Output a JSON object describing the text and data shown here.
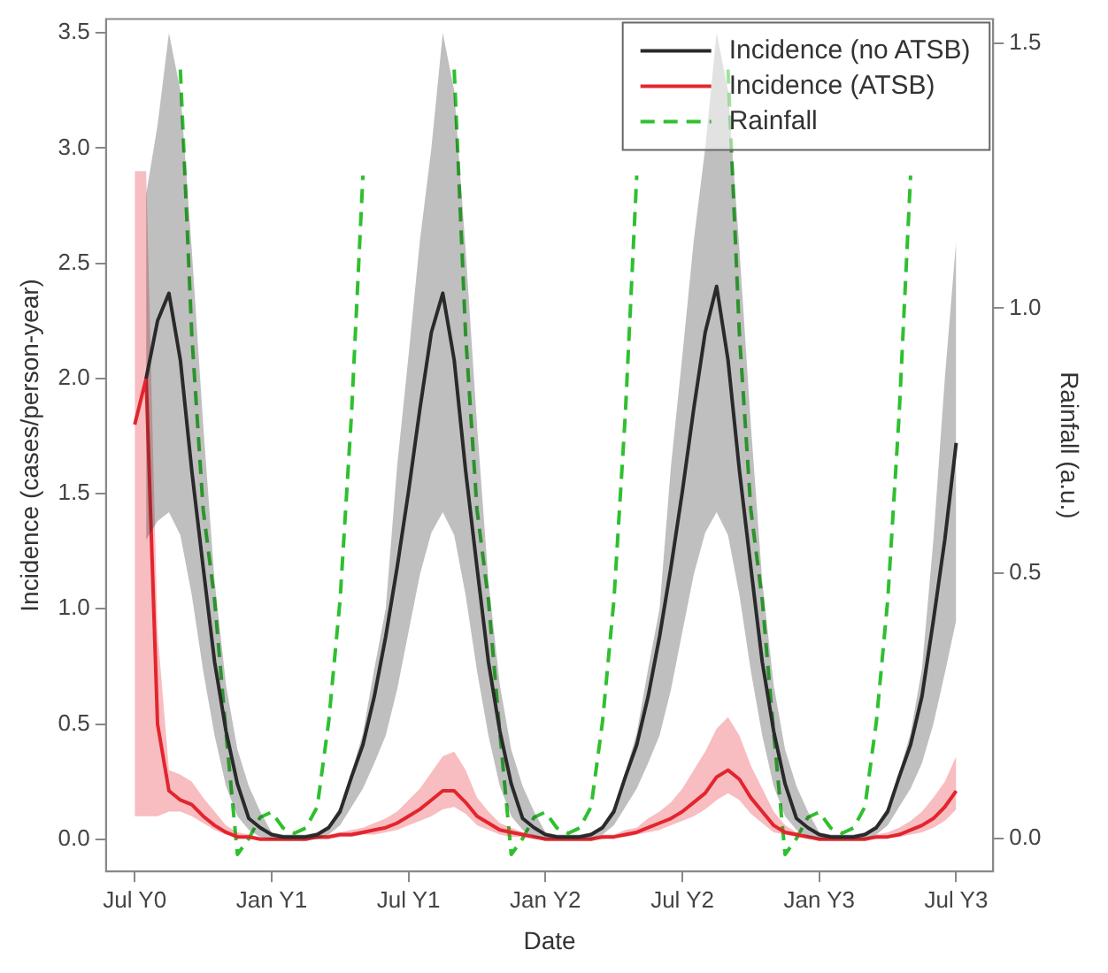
{
  "chart_data": {
    "type": "line",
    "xlabel": "Date",
    "ylabel": "Incidence (cases/person-year)",
    "y2label": "Rainfall (a.u.)",
    "categories": [
      "Jul Y0",
      null,
      null,
      null,
      null,
      null,
      null,
      null,
      null,
      null,
      null,
      null,
      "Jan Y1",
      null,
      null,
      null,
      null,
      null,
      null,
      null,
      null,
      null,
      null,
      null,
      "Jul Y1",
      null,
      null,
      null,
      null,
      null,
      null,
      null,
      null,
      null,
      null,
      null,
      "Jan Y2",
      null,
      null,
      null,
      null,
      null,
      null,
      null,
      null,
      null,
      null,
      null,
      "Jul Y2",
      null,
      null,
      null,
      null,
      null,
      null,
      null,
      null,
      null,
      null,
      null,
      "Jan Y3",
      null,
      null,
      null,
      null,
      null,
      null,
      null,
      null,
      null,
      null,
      null,
      "Jul Y3"
    ],
    "ylim": [
      -0.14,
      3.56
    ],
    "yticks": [
      {
        "value": 0,
        "label": "0.0"
      },
      {
        "value": 0.5,
        "label": "0.5"
      },
      {
        "value": 1,
        "label": "1.0"
      },
      {
        "value": 1.5,
        "label": "1.5"
      },
      {
        "value": 2,
        "label": "2.0"
      },
      {
        "value": 2.5,
        "label": "2.5"
      },
      {
        "value": 3,
        "label": "3.0"
      },
      {
        "value": 3.5,
        "label": "3.5"
      }
    ],
    "y2lim": [
      -0.062,
      1.545
    ],
    "y2ticks": [
      {
        "value": 0,
        "label": "0.0"
      },
      {
        "value": 0.5,
        "label": "0.5"
      },
      {
        "value": 1,
        "label": "1.0"
      },
      {
        "value": 1.5,
        "label": "1.5"
      }
    ],
    "grid": false,
    "legend": "top right",
    "marker": "none",
    "series": [
      {
        "name": "Incidence (no ATSB)",
        "color": "#2a2a2a",
        "values": [
          null,
          2.0,
          2.25,
          2.37,
          2.08,
          1.6,
          1.18,
          0.77,
          0.47,
          0.24,
          0.09,
          0.05,
          0.02,
          0.01,
          0.01,
          0.01,
          0.02,
          0.05,
          0.12,
          0.27,
          0.41,
          0.62,
          0.88,
          1.18,
          1.51,
          1.87,
          2.2,
          2.37,
          2.08,
          1.6,
          1.18,
          0.77,
          0.47,
          0.24,
          0.09,
          0.05,
          0.02,
          0.01,
          0.01,
          0.01,
          0.02,
          0.05,
          0.12,
          0.27,
          0.41,
          0.62,
          0.88,
          1.18,
          1.51,
          1.87,
          2.2,
          2.4,
          2.08,
          1.6,
          1.18,
          0.77,
          0.47,
          0.24,
          0.09,
          0.05,
          0.02,
          0.01,
          0.01,
          0.01,
          0.02,
          0.05,
          0.12,
          0.27,
          0.41,
          0.62,
          0.95,
          1.3,
          1.72
        ],
        "upper": [
          null,
          2.8,
          3.1,
          3.5,
          3.25,
          2.56,
          1.8,
          1.12,
          0.67,
          0.39,
          0.23,
          0.12,
          0.03,
          0.02,
          0.02,
          0.02,
          0.03,
          0.06,
          0.14,
          0.29,
          0.46,
          0.74,
          1.0,
          1.62,
          2.1,
          2.6,
          3.0,
          3.5,
          3.25,
          2.56,
          1.8,
          1.12,
          0.67,
          0.39,
          0.23,
          0.12,
          0.03,
          0.02,
          0.02,
          0.02,
          0.03,
          0.06,
          0.14,
          0.29,
          0.46,
          0.74,
          1.0,
          1.62,
          2.1,
          2.6,
          3.0,
          3.5,
          3.25,
          2.56,
          1.8,
          1.12,
          0.67,
          0.39,
          0.23,
          0.12,
          0.03,
          0.02,
          0.02,
          0.02,
          0.03,
          0.06,
          0.14,
          0.29,
          0.46,
          0.74,
          1.3,
          2.0,
          2.6
        ],
        "lower": [
          null,
          1.3,
          1.38,
          1.42,
          1.32,
          1.06,
          0.73,
          0.45,
          0.23,
          0.1,
          0.04,
          0.01,
          0,
          0,
          0,
          0,
          0,
          0.02,
          0.06,
          0.14,
          0.22,
          0.33,
          0.45,
          0.65,
          0.9,
          1.15,
          1.33,
          1.42,
          1.32,
          1.06,
          0.73,
          0.45,
          0.23,
          0.1,
          0.04,
          0.01,
          0,
          0,
          0,
          0,
          0,
          0.02,
          0.06,
          0.14,
          0.22,
          0.33,
          0.45,
          0.65,
          0.9,
          1.15,
          1.33,
          1.42,
          1.32,
          1.06,
          0.73,
          0.45,
          0.23,
          0.1,
          0.04,
          0.01,
          0,
          0,
          0,
          0,
          0,
          0.02,
          0.06,
          0.14,
          0.22,
          0.33,
          0.5,
          0.72,
          0.95
        ]
      },
      {
        "name": "Incidence (ATSB)",
        "color": "#e3262f",
        "values": [
          1.8,
          2.0,
          0.5,
          0.21,
          0.17,
          0.15,
          0.1,
          0.06,
          0.03,
          0.01,
          0.01,
          0,
          0,
          0,
          0,
          0,
          0.01,
          0.01,
          0.02,
          0.02,
          0.03,
          0.04,
          0.05,
          0.07,
          0.1,
          0.13,
          0.17,
          0.21,
          0.21,
          0.16,
          0.1,
          0.07,
          0.04,
          0.03,
          0.02,
          0.01,
          0,
          0,
          0,
          0,
          0,
          0.01,
          0.01,
          0.02,
          0.03,
          0.05,
          0.07,
          0.09,
          0.12,
          0.16,
          0.2,
          0.27,
          0.3,
          0.26,
          0.18,
          0.12,
          0.06,
          0.03,
          0.02,
          0.01,
          0,
          0,
          0,
          0,
          0,
          0.01,
          0.01,
          0.02,
          0.04,
          0.06,
          0.09,
          0.14,
          0.21
        ],
        "upper": [
          2.9,
          2.9,
          0.9,
          0.3,
          0.28,
          0.25,
          0.18,
          0.12,
          0.06,
          0.03,
          0.02,
          0.01,
          0,
          0,
          0,
          0,
          0.01,
          0.02,
          0.03,
          0.04,
          0.05,
          0.07,
          0.09,
          0.12,
          0.17,
          0.22,
          0.29,
          0.36,
          0.38,
          0.3,
          0.18,
          0.12,
          0.07,
          0.05,
          0.03,
          0.02,
          0.01,
          0.01,
          0.01,
          0.01,
          0.01,
          0.02,
          0.02,
          0.04,
          0.05,
          0.09,
          0.12,
          0.16,
          0.22,
          0.3,
          0.38,
          0.48,
          0.53,
          0.45,
          0.32,
          0.22,
          0.12,
          0.06,
          0.03,
          0.02,
          0.01,
          0.01,
          0.01,
          0.01,
          0.01,
          0.02,
          0.03,
          0.05,
          0.08,
          0.12,
          0.18,
          0.25,
          0.36
        ],
        "lower": [
          0.1,
          0.1,
          0.1,
          0.12,
          0.12,
          0.1,
          0.07,
          0.04,
          0.02,
          0.01,
          0,
          0,
          0,
          0,
          0,
          0,
          0,
          0,
          0.01,
          0.01,
          0.02,
          0.02,
          0.03,
          0.04,
          0.06,
          0.08,
          0.1,
          0.13,
          0.14,
          0.11,
          0.06,
          0.04,
          0.02,
          0.01,
          0.01,
          0,
          0,
          0,
          0,
          0,
          0,
          0,
          0.01,
          0.01,
          0.02,
          0.03,
          0.04,
          0.06,
          0.08,
          0.1,
          0.13,
          0.17,
          0.2,
          0.17,
          0.11,
          0.07,
          0.03,
          0.02,
          0.01,
          0,
          0,
          0,
          0,
          0,
          0,
          0,
          0.01,
          0.01,
          0.02,
          0.03,
          0.05,
          0.08,
          0.13
        ]
      },
      {
        "name": "Rainfall",
        "color": "#2fc02f",
        "axis": "y2",
        "line_style": "dashed",
        "values": [
          null,
          null,
          null,
          null,
          1.45,
          0.95,
          0.62,
          0.45,
          0.2,
          -0.03,
          0,
          0.04,
          0.05,
          0.02,
          0.01,
          0.02,
          0.06,
          0.22,
          0.45,
          0.8,
          1.25,
          null,
          null,
          null,
          null,
          null,
          null,
          null,
          1.45,
          0.95,
          0.62,
          0.45,
          0.2,
          -0.03,
          0,
          0.04,
          0.05,
          0.02,
          0.01,
          0.02,
          0.06,
          0.22,
          0.45,
          0.8,
          1.25,
          null,
          null,
          null,
          null,
          null,
          null,
          null,
          1.45,
          0.95,
          0.62,
          0.45,
          0.2,
          -0.03,
          0,
          0.04,
          0.05,
          0.02,
          0.01,
          0.02,
          0.06,
          0.22,
          0.45,
          0.8,
          1.25,
          null,
          null,
          null,
          null
        ]
      }
    ]
  }
}
